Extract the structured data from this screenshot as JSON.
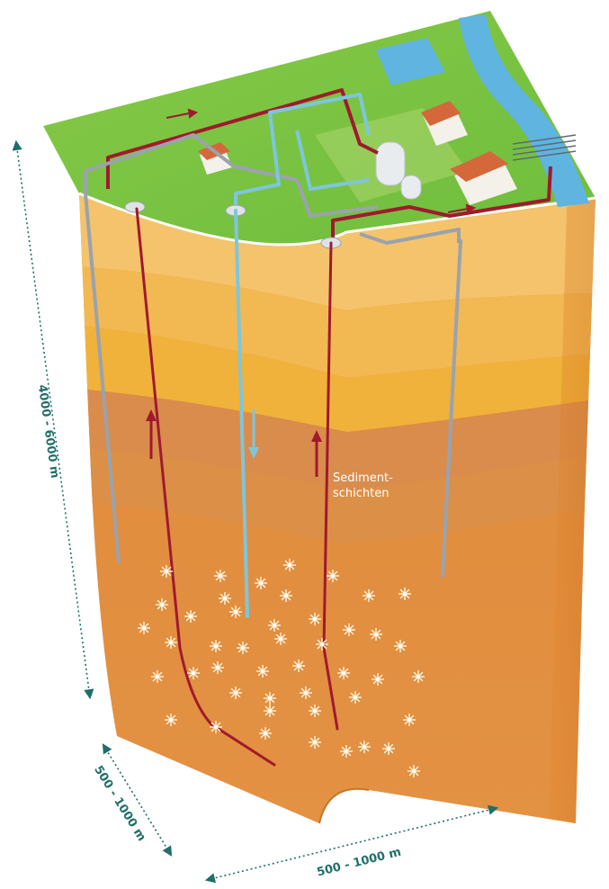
{
  "labels": {
    "depth": "4000 - 6000 m",
    "width_left": "500 - 1000 m",
    "width_right": "500 - 1000 m",
    "layer_line1": "Sediment-",
    "layer_line2": "schichten"
  },
  "colors": {
    "dimension": "#1f6f6a",
    "hot_pipe": "#a01a2e",
    "cold_pipe": "#7ec6dc",
    "grey_pipe": "#9aa3ad",
    "grass": "#7cc242",
    "water": "#5fb4e0",
    "layer_text": "#ffffff"
  },
  "icons": {
    "flow_arrow": "arrow-icon",
    "sparkle": "sparkle-icon",
    "building": "house-icon",
    "plant": "tank-icon",
    "pylon": "power-line-icon"
  }
}
